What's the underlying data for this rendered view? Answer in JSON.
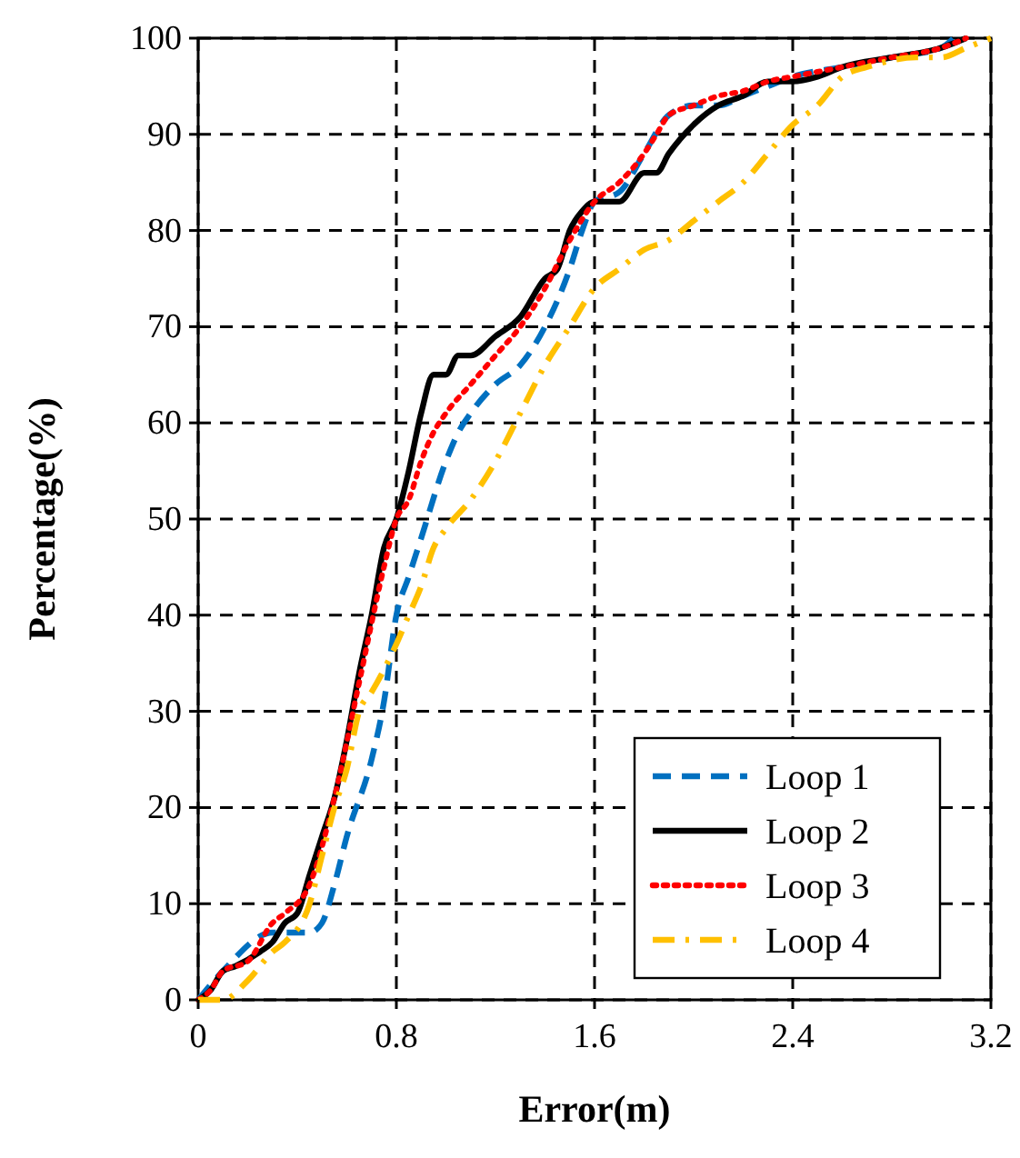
{
  "chart_data": {
    "type": "line",
    "xlabel": "Error(m)",
    "ylabel": "Percentage(%)",
    "xlim": [
      0,
      3.2
    ],
    "ylim": [
      0,
      100
    ],
    "xticks": [
      0,
      0.8,
      1.6,
      2.4,
      3.2
    ],
    "yticks": [
      0,
      10,
      20,
      30,
      40,
      50,
      60,
      70,
      80,
      90,
      100
    ],
    "grid": true,
    "legend": "bottom right",
    "series": [
      {
        "name": "Loop 1",
        "color": "#0070c0",
        "line_style": "dashed",
        "x": [
          0,
          0.1,
          0.3,
          0.45,
          0.5,
          0.55,
          0.6,
          0.7,
          0.75,
          0.8,
          0.85,
          0.9,
          1.0,
          1.05,
          1.1,
          1.2,
          1.3,
          1.4,
          1.5,
          1.55,
          1.6,
          1.7,
          1.8,
          1.9,
          2.0,
          2.1,
          2.2,
          2.3,
          2.4,
          2.6,
          2.8,
          3.0,
          3.05
        ],
        "values": [
          0,
          3,
          7,
          7,
          8,
          12,
          17,
          25,
          31,
          40,
          44,
          48,
          56,
          59,
          61,
          64,
          66,
          70,
          76,
          80,
          83,
          84,
          88,
          92,
          93,
          93,
          94,
          95,
          96,
          97,
          98,
          99,
          100
        ]
      },
      {
        "name": "Loop 2",
        "color": "#000000",
        "line_style": "solid",
        "x": [
          0,
          0.05,
          0.1,
          0.15,
          0.25,
          0.3,
          0.35,
          0.4,
          0.45,
          0.5,
          0.55,
          0.6,
          0.65,
          0.7,
          0.75,
          0.8,
          0.85,
          0.9,
          0.95,
          1.0,
          1.05,
          1.1,
          1.2,
          1.3,
          1.4,
          1.45,
          1.5,
          1.55,
          1.6,
          1.7,
          1.8,
          1.85,
          1.9,
          2.0,
          2.1,
          2.2,
          2.3,
          2.4,
          2.5,
          2.6,
          2.8,
          3.0,
          3.1
        ],
        "values": [
          0,
          1,
          3,
          3.5,
          5,
          6,
          8,
          9,
          13,
          17,
          21,
          27,
          34,
          40,
          47,
          50,
          55,
          61,
          65,
          65,
          67,
          67,
          69,
          71,
          75,
          76,
          80,
          82,
          83,
          83,
          86,
          86,
          88,
          91,
          93,
          94,
          95.5,
          95.5,
          96,
          97,
          98,
          99,
          100
        ]
      },
      {
        "name": "Loop 3",
        "color": "#ff0000",
        "line_style": "dotted",
        "x": [
          0,
          0.05,
          0.1,
          0.2,
          0.3,
          0.35,
          0.45,
          0.55,
          0.65,
          0.75,
          0.8,
          0.85,
          0.9,
          0.95,
          1.0,
          1.1,
          1.2,
          1.3,
          1.4,
          1.5,
          1.6,
          1.7,
          1.8,
          1.85,
          1.9,
          2.0,
          2.1,
          2.2,
          2.3,
          2.4,
          2.6,
          2.8,
          3.0,
          3.1
        ],
        "values": [
          0,
          1,
          3,
          4,
          8,
          9,
          12,
          21,
          33,
          45,
          50,
          52,
          56,
          59,
          61,
          64,
          67,
          70,
          74,
          79,
          83,
          85,
          88,
          90,
          92,
          93,
          94,
          94.5,
          95.5,
          96,
          97,
          98,
          99,
          100
        ]
      },
      {
        "name": "Loop 4",
        "color": "#ffc000",
        "line_style": "dashdot",
        "x": [
          0,
          0.1,
          0.2,
          0.3,
          0.35,
          0.45,
          0.5,
          0.55,
          0.6,
          0.65,
          0.7,
          0.8,
          0.85,
          0.9,
          0.95,
          1.0,
          1.1,
          1.2,
          1.3,
          1.4,
          1.5,
          1.6,
          1.7,
          1.8,
          1.9,
          2.0,
          2.1,
          2.2,
          2.3,
          2.4,
          2.5,
          2.6,
          2.7,
          2.9,
          3.0,
          3.1,
          3.2
        ],
        "values": [
          0,
          0,
          2,
          5,
          6,
          10,
          15,
          20,
          24,
          30,
          32,
          37,
          40,
          43,
          47,
          49,
          52,
          56,
          61,
          66,
          70,
          74,
          76,
          78,
          79,
          81,
          83,
          85,
          88,
          91,
          93,
          96,
          97,
          98,
          98,
          99,
          100
        ]
      }
    ]
  }
}
